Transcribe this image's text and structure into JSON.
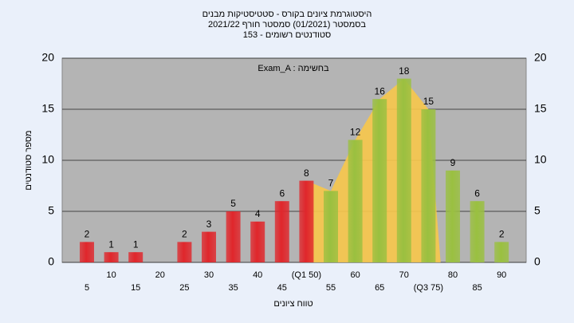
{
  "chart_data": {
    "type": "bar",
    "title": [
      "היסטוגרמת ציונים בקורס - סטטיסטיקות מבנים",
      "בסמסטר (01/2021) סמסטר חורף 2021/22",
      "153 - סטודנטים רשומים"
    ],
    "annotation": "Exam_A : בחשימה",
    "x_label": "טווח ציונים",
    "y_label": "מספר סטודנטים",
    "categories": [
      "5",
      "10",
      "15",
      "20",
      "25",
      "30",
      "35",
      "40",
      "45",
      "(Q1 50)",
      "55",
      "60",
      "65",
      "70",
      "(Q3 75)",
      "80",
      "85",
      "90"
    ],
    "values": [
      2,
      1,
      1,
      null,
      2,
      3,
      5,
      4,
      6,
      8,
      7,
      12,
      16,
      18,
      15,
      9,
      6,
      2
    ],
    "colors": [
      "#e0262b",
      "#e0262b",
      "#e0262b",
      "#e0262b",
      "#e0262b",
      "#e0262b",
      "#e0262b",
      "#e0262b",
      "#e0262b",
      "#e0262b",
      "#9ac040",
      "#9ac040",
      "#9ac040",
      "#9ac040",
      "#9ac040",
      "#9ac040",
      "#9ac040",
      "#9ac040"
    ],
    "iqr_color": "#f7c64a",
    "ylim": [
      0,
      20
    ],
    "yticks": [
      0,
      5,
      10,
      15,
      20
    ],
    "grid": true
  }
}
